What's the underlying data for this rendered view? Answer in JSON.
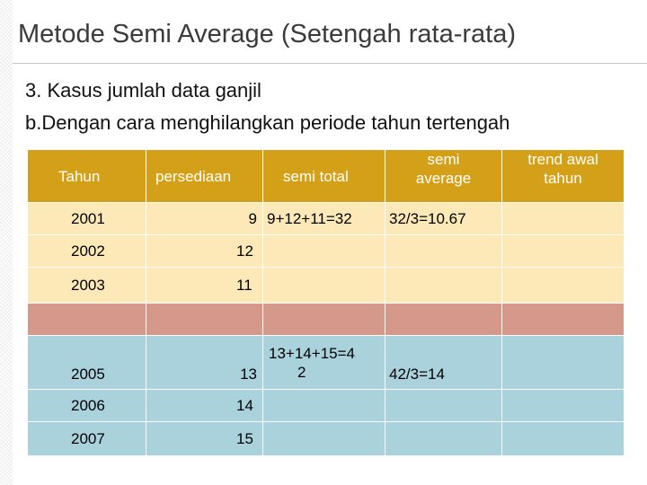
{
  "title": "Metode Semi Average (Setengah rata-rata)",
  "bullets": [
    "3. Kasus jumlah data ganjil",
    "b.Dengan cara menghilangkan periode tahun tertengah"
  ],
  "table": {
    "headers": {
      "tahun": "Tahun",
      "persediaan": "persediaan",
      "semi_total": "semi total",
      "semi_average_1": "semi",
      "semi_average_2": "average",
      "trend_1": "trend awal",
      "trend_2": "tahun"
    },
    "rows": [
      {
        "year": "2001",
        "value": "9",
        "semi_total": "9+12+11=32",
        "semi_average": "32/3=10.67"
      },
      {
        "year": "2002",
        "value": "12"
      },
      {
        "year": "2003",
        "value": "11"
      },
      {
        "year": "",
        "value": ""
      },
      {
        "year": "2005",
        "value": "13",
        "semi_total_1": "13+14+15=4",
        "semi_total_2": "2",
        "semi_average": "42/3=14"
      },
      {
        "year": "2006",
        "value": "14"
      },
      {
        "year": "2007",
        "value": "15"
      }
    ]
  },
  "colors": {
    "header": "#d4a017",
    "first_group": "#fde9b8",
    "removed_row": "#d4998a",
    "second_group": "#aad2dc"
  }
}
